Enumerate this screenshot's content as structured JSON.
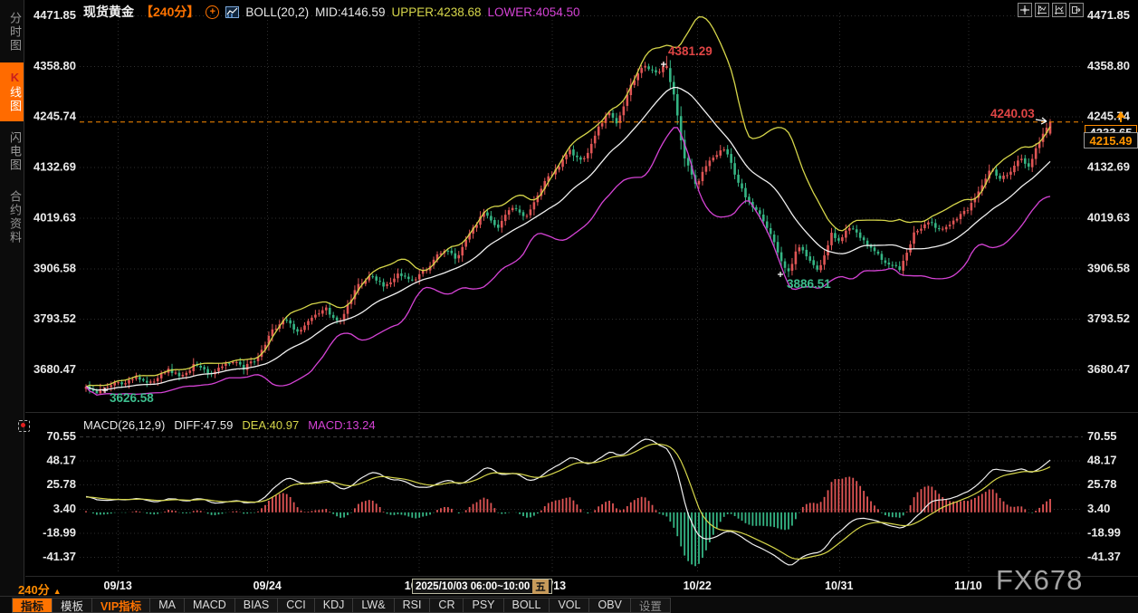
{
  "window": {
    "watermark": "FX678"
  },
  "header": {
    "symbol": "现货黄金",
    "interval_tag": "【240分】",
    "indicator": "BOLL(20,2)",
    "mid_label": "MID:4146.59",
    "upper_label": "UPPER:4238.68",
    "lower_label": "LOWER:4054.50",
    "plus_glyph": "+"
  },
  "icons": {
    "header": [
      "circle-plus",
      "kline-chart"
    ],
    "topright": [
      "crosshair",
      "jump-start",
      "jump-end",
      "exit-pane"
    ],
    "macd_panel": [
      "alarm-dot"
    ]
  },
  "sidebar": {
    "tabs": [
      {
        "key": "time-chart",
        "label": "分时图",
        "active": false
      },
      {
        "key": "kline-chart",
        "label": "K线图",
        "accent": "K",
        "rest": "线图",
        "active": true
      },
      {
        "key": "flash-chart",
        "label": "闪电图",
        "active": false
      },
      {
        "key": "contract-info",
        "label": "合约资料",
        "active": false
      }
    ]
  },
  "macd_panel": {
    "title": "MACD(26,12,9)",
    "diff_label": "DIFF:47.59",
    "dea_label": "DEA:40.97",
    "macd_label": "MACD:13.24"
  },
  "price_markers": {
    "last": "4233.65",
    "secondary": "4215.49",
    "arrow_glyph": "▲"
  },
  "annotations": {
    "peak": "4381.29",
    "trough": "3886.51",
    "start_low": "3626.58",
    "recent_high": "4240.03"
  },
  "time_scale": {
    "interval_label": "240分",
    "arrow": "▲",
    "tooltip": {
      "text": "2025/10/03 06:00~10:00",
      "weekday": "五"
    }
  },
  "toolbar": {
    "items": [
      {
        "key": "indicators",
        "label": "指标",
        "style": "active"
      },
      {
        "key": "templates",
        "label": "模板",
        "style": ""
      },
      {
        "key": "vip-indicators",
        "label": "VIP指标",
        "style": "vip"
      },
      {
        "key": "ma",
        "label": "MA",
        "style": ""
      },
      {
        "key": "macd",
        "label": "MACD",
        "style": ""
      },
      {
        "key": "bias",
        "label": "BIAS",
        "style": ""
      },
      {
        "key": "cci",
        "label": "CCI",
        "style": ""
      },
      {
        "key": "kdj",
        "label": "KDJ",
        "style": ""
      },
      {
        "key": "lwr",
        "label": "LW&",
        "style": ""
      },
      {
        "key": "rsi",
        "label": "RSI",
        "style": ""
      },
      {
        "key": "cr",
        "label": "CR",
        "style": ""
      },
      {
        "key": "psy",
        "label": "PSY",
        "style": ""
      },
      {
        "key": "boll",
        "label": "BOLL",
        "style": ""
      },
      {
        "key": "vol",
        "label": "VOL",
        "style": ""
      },
      {
        "key": "obv",
        "label": "OBV",
        "style": ""
      },
      {
        "key": "settings",
        "label": "设置",
        "style": "dim"
      }
    ]
  },
  "colors": {
    "up": "#e05555",
    "down": "#35b584",
    "boll_upper": "#d6d64a",
    "boll_mid": "#f0f0f0",
    "boll_lower": "#d543d5",
    "macd_diff": "#f0f0f0",
    "macd_dea": "#d6d64a",
    "hist_pos": "#e05555",
    "hist_neg": "#35b584",
    "accent": "#ff7300",
    "price_line": "#ff8c00",
    "annotation_high": "#e04545",
    "annotation_low": "#3dbd8d",
    "axis_text": "#eaeaea",
    "grid": "#2e2e2e"
  },
  "chart_data": {
    "type": "candlestick",
    "title": "现货黄金 240分钟K线 BOLL(20,2) + MACD(26,12,9)",
    "interval_minutes": 240,
    "price_axis_ticks": [
      "4471.85",
      "4358.80",
      "4245.74",
      "4132.69",
      "4019.63",
      "3906.58",
      "3793.52",
      "3680.47"
    ],
    "time_ticks": [
      {
        "label": "09/13",
        "t": 0.033
      },
      {
        "label": "09/24",
        "t": 0.188
      },
      {
        "label": "10/03",
        "t": 0.345
      },
      {
        "label": "10/13",
        "t": 0.483
      },
      {
        "label": "10/22",
        "t": 0.634
      },
      {
        "label": "10/31",
        "t": 0.781
      },
      {
        "label": "11/10",
        "t": 0.915
      }
    ],
    "candles_count": 270,
    "close_path": [
      [
        0.0,
        3642
      ],
      [
        0.012,
        3630
      ],
      [
        0.025,
        3648
      ],
      [
        0.04,
        3652
      ],
      [
        0.052,
        3666
      ],
      [
        0.066,
        3650
      ],
      [
        0.085,
        3680
      ],
      [
        0.099,
        3664
      ],
      [
        0.113,
        3692
      ],
      [
        0.131,
        3670
      ],
      [
        0.15,
        3700
      ],
      [
        0.164,
        3684
      ],
      [
        0.178,
        3704
      ],
      [
        0.192,
        3768
      ],
      [
        0.207,
        3790
      ],
      [
        0.221,
        3760
      ],
      [
        0.235,
        3798
      ],
      [
        0.249,
        3815
      ],
      [
        0.263,
        3786
      ],
      [
        0.282,
        3868
      ],
      [
        0.296,
        3890
      ],
      [
        0.31,
        3862
      ],
      [
        0.324,
        3895
      ],
      [
        0.338,
        3878
      ],
      [
        0.352,
        3904
      ],
      [
        0.371,
        3950
      ],
      [
        0.385,
        3928
      ],
      [
        0.399,
        3988
      ],
      [
        0.413,
        4030
      ],
      [
        0.427,
        3998
      ],
      [
        0.441,
        4046
      ],
      [
        0.455,
        4018
      ],
      [
        0.474,
        4094
      ],
      [
        0.488,
        4130
      ],
      [
        0.502,
        4168
      ],
      [
        0.516,
        4148
      ],
      [
        0.531,
        4218
      ],
      [
        0.542,
        4258
      ],
      [
        0.551,
        4228
      ],
      [
        0.563,
        4308
      ],
      [
        0.577,
        4358
      ],
      [
        0.592,
        4342
      ],
      [
        0.601,
        4368
      ],
      [
        0.609,
        4300
      ],
      [
        0.62,
        4160
      ],
      [
        0.632,
        4092
      ],
      [
        0.648,
        4152
      ],
      [
        0.662,
        4176
      ],
      [
        0.673,
        4118
      ],
      [
        0.685,
        4058
      ],
      [
        0.698,
        4028
      ],
      [
        0.709,
        3988
      ],
      [
        0.72,
        3928
      ],
      [
        0.728,
        3894
      ],
      [
        0.739,
        3958
      ],
      [
        0.749,
        3928
      ],
      [
        0.761,
        3902
      ],
      [
        0.773,
        3984
      ],
      [
        0.781,
        3964
      ],
      [
        0.793,
        4002
      ],
      [
        0.805,
        3972
      ],
      [
        0.817,
        3944
      ],
      [
        0.829,
        3920
      ],
      [
        0.845,
        3906
      ],
      [
        0.859,
        3988
      ],
      [
        0.873,
        4008
      ],
      [
        0.887,
        3994
      ],
      [
        0.901,
        4016
      ],
      [
        0.915,
        4040
      ],
      [
        0.927,
        4086
      ],
      [
        0.939,
        4128
      ],
      [
        0.948,
        4108
      ],
      [
        0.961,
        4126
      ],
      [
        0.97,
        4154
      ],
      [
        0.978,
        4134
      ],
      [
        0.988,
        4190
      ],
      [
        1.0,
        4232
      ]
    ],
    "key_points": {
      "high": 4381.29,
      "mid_low": 3886.51,
      "start_low": 3626.58,
      "last_high": 4240.03,
      "last_close": 4233.65,
      "secondary_price": 4215.49
    },
    "boll": {
      "period": 20,
      "k": 2,
      "current": {
        "mid": 4146.59,
        "upper": 4238.68,
        "lower": 4054.5
      }
    },
    "macd": {
      "params": [
        26,
        12,
        9
      ],
      "current": {
        "diff": 47.59,
        "dea": 40.97,
        "macd": 13.24
      },
      "axis_ticks": [
        "70.55",
        "48.17",
        "25.78",
        "3.40",
        "-18.99",
        "-41.37"
      ],
      "ylim": [
        -54,
        70.55
      ]
    }
  }
}
